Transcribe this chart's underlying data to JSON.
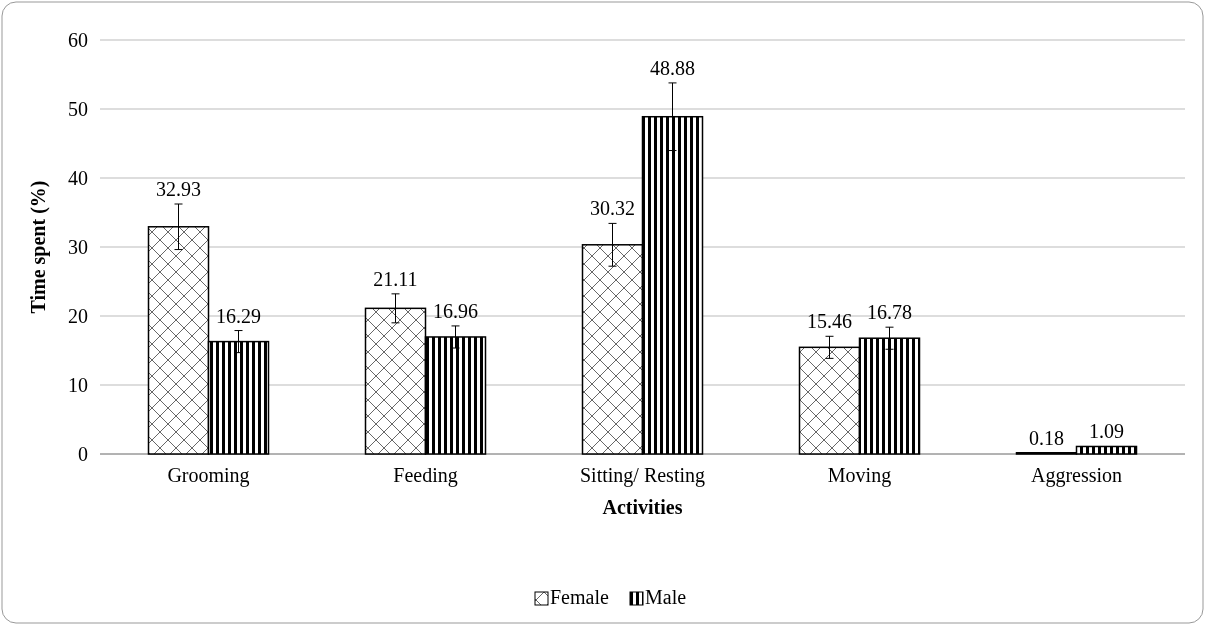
{
  "chart_data": {
    "type": "bar",
    "xlabel": "Activities",
    "ylabel": "Time spent (%)",
    "categories": [
      "Grooming",
      "Feeding",
      "Sitting/ Resting",
      "Moving",
      "Aggression"
    ],
    "series": [
      {
        "name": "Female",
        "color": "#000000",
        "values": [
          32.93,
          21.11,
          30.32,
          15.46,
          0.18
        ],
        "errors": [
          3.3,
          2.1,
          3.1,
          1.6,
          null
        ]
      },
      {
        "name": "Male",
        "color": "#000000",
        "values": [
          16.29,
          16.96,
          48.88,
          16.78,
          1.09
        ],
        "errors": [
          1.6,
          1.6,
          4.9,
          1.6,
          null
        ]
      }
    ],
    "ylim": [
      0,
      60
    ],
    "yticks": [
      0,
      10,
      20,
      30,
      40,
      50,
      60
    ],
    "grid": "y",
    "legend": "bottom",
    "data_labels": true
  }
}
